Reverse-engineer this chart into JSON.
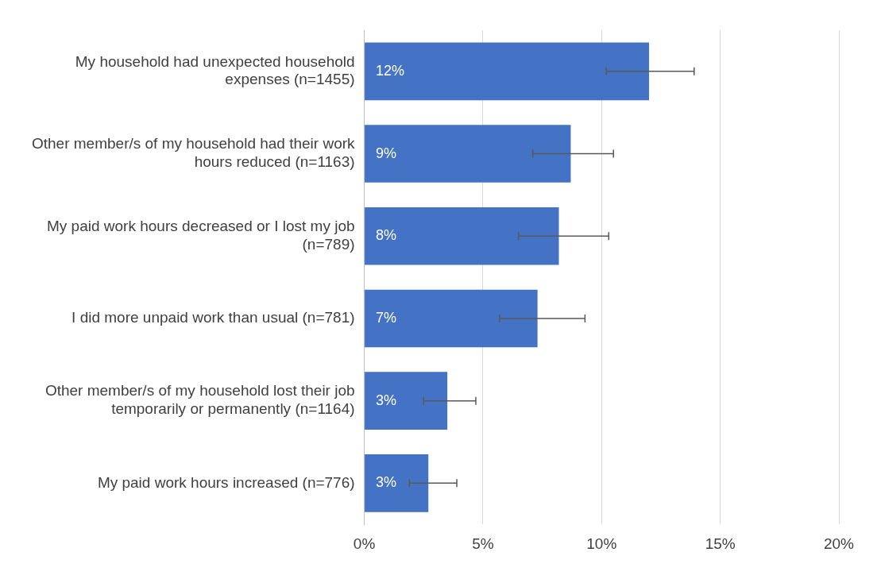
{
  "chart_data": {
    "type": "bar",
    "orientation": "horizontal",
    "categories": [
      "My household had unexpected household expenses (n=1455)",
      "Other member/s of my household had their work hours reduced (n=1163)",
      "My paid work hours decreased or I lost my job (n=789)",
      "I did more unpaid work than usual (n=781)",
      "Other member/s of my household lost their job temporarily or permanently (n=1164)",
      "My paid work hours increased (n=776)"
    ],
    "values": [
      12.0,
      8.7,
      8.2,
      7.3,
      3.5,
      2.7
    ],
    "color": "#4472c4",
    "errors": [
      [
        10.2,
        13.9
      ],
      [
        7.1,
        10.5
      ],
      [
        6.5,
        10.3
      ],
      [
        5.7,
        9.3
      ],
      [
        2.5,
        4.7
      ],
      [
        1.9,
        3.9
      ]
    ],
    "value_labels": [
      "12%",
      "9%",
      "8%",
      "7%",
      "3%",
      "3%"
    ],
    "xlim": [
      0,
      20
    ],
    "xticks": [
      {
        "value": 0,
        "label": "0%"
      },
      {
        "value": 5,
        "label": "5%"
      },
      {
        "value": 10,
        "label": "10%"
      },
      {
        "value": 15,
        "label": "15%"
      },
      {
        "value": 20,
        "label": "20%"
      }
    ],
    "grid": "x",
    "legend": false
  }
}
